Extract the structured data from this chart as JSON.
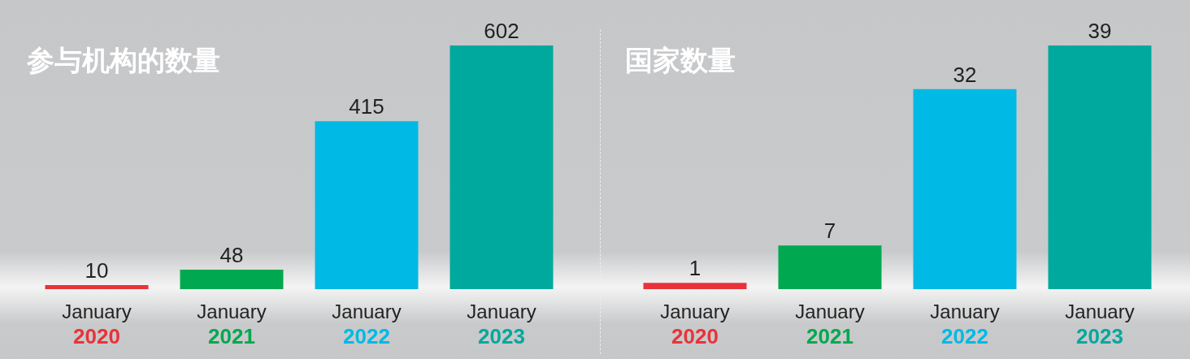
{
  "chart_data": [
    {
      "type": "bar",
      "title": "参与机构的数量",
      "categories": [
        "January\n2020",
        "January\n2021",
        "January\n2022",
        "January\n2023"
      ],
      "values": [
        10,
        48,
        415,
        602
      ],
      "colors": [
        "#e8333a",
        "#00a94f",
        "#00b9e4",
        "#00a99d"
      ],
      "data_labels": true
    },
    {
      "type": "bar",
      "title": "国家数量",
      "categories": [
        "January\n2020",
        "January\n2021",
        "January\n2022",
        "January\n2023"
      ],
      "values": [
        1,
        7,
        32,
        39
      ],
      "colors": [
        "#e8333a",
        "#00a94f",
        "#00b9e4",
        "#00a99d"
      ],
      "data_labels": true
    }
  ]
}
